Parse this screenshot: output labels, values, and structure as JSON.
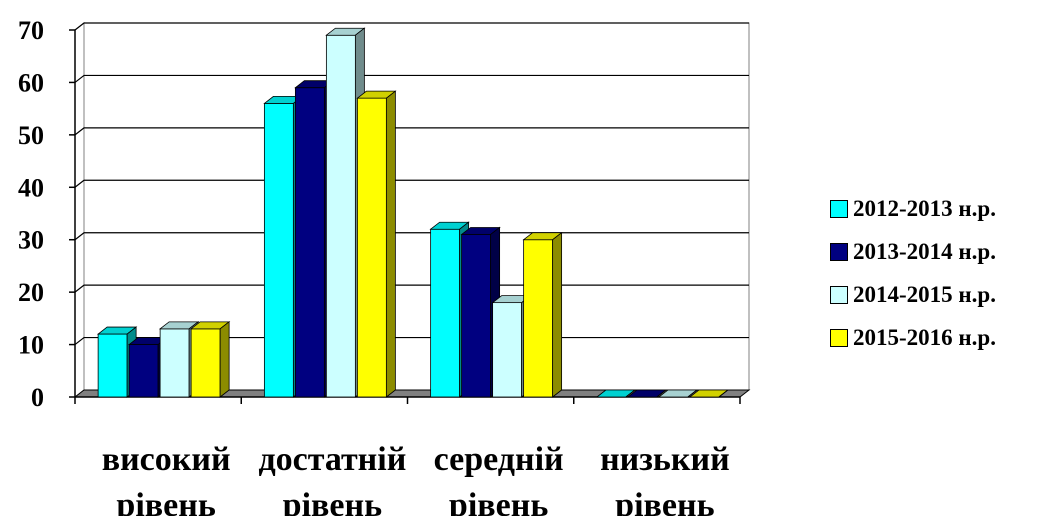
{
  "chart_data": {
    "type": "bar",
    "categories": [
      [
        "високий",
        "рівень"
      ],
      [
        "достатній",
        "рівень"
      ],
      [
        "середній",
        "рівень"
      ],
      [
        "низький",
        "рівень"
      ]
    ],
    "series": [
      {
        "name": "2012-2013 н.р.",
        "color": "#00FFFF",
        "values": [
          12,
          56,
          32,
          0
        ]
      },
      {
        "name": "2013-2014 н.р.",
        "color": "#000080",
        "values": [
          10,
          59,
          31,
          0
        ]
      },
      {
        "name": "2014-2015 н.р.",
        "color": "#CCFFFF",
        "values": [
          13,
          69,
          18,
          0
        ]
      },
      {
        "name": "2015-2016 н.р.",
        "color": "#FFFF00",
        "values": [
          13,
          57,
          30,
          0
        ]
      }
    ],
    "yticks": [
      0,
      10,
      20,
      30,
      40,
      50,
      60,
      70
    ],
    "ylim": [
      0,
      70
    ],
    "grid": true,
    "legend_position": "right",
    "style": "3d-clustered-column"
  }
}
